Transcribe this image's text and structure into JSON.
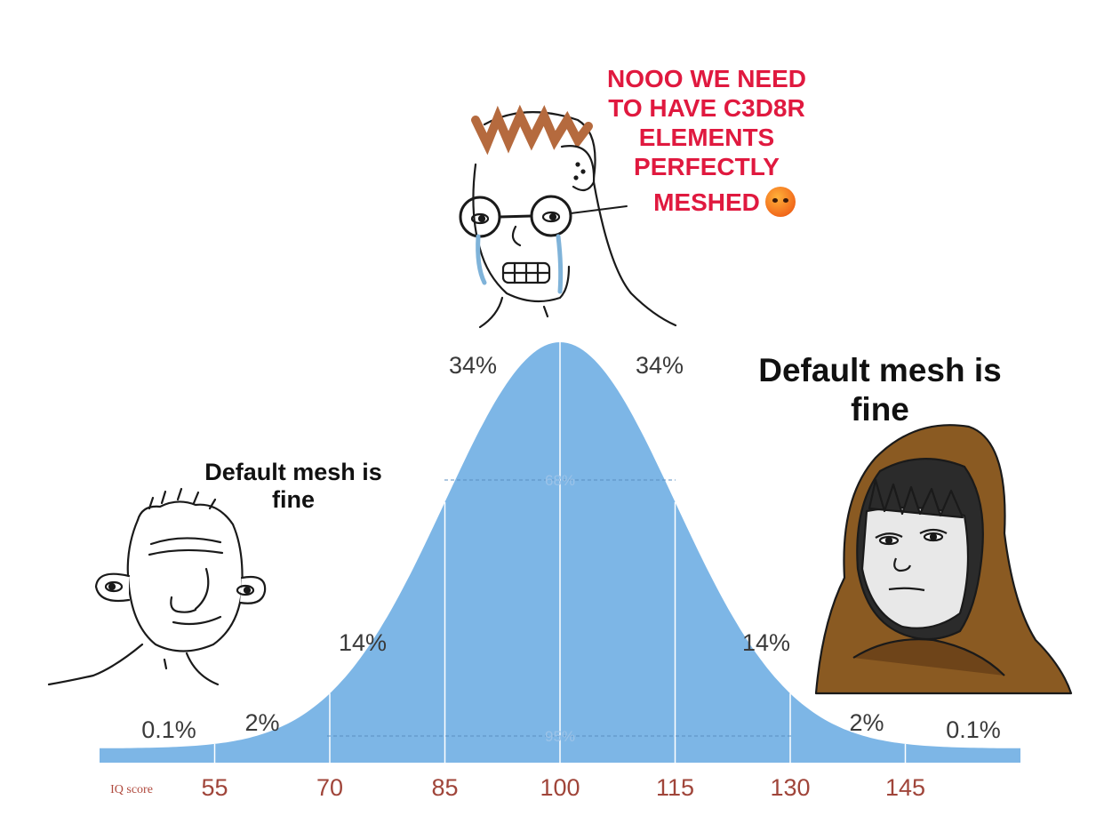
{
  "captions": {
    "top_line1": "NOOO WE NEED",
    "top_line2": "TO HAVE C3D8R",
    "top_line3": "ELEMENTS",
    "top_line4": "PERFECTLY",
    "top_line5": "MESHED",
    "left": "Default mesh is fine",
    "right": "Default mesh is fine"
  },
  "characters": {
    "top": "crying-nerd-wojak",
    "left": "simple-wojak",
    "right": "hooded-wojak"
  },
  "chart_data": {
    "type": "area",
    "xlabel": "IQ score",
    "x_ticks": [
      "55",
      "70",
      "85",
      "100",
      "115",
      "130",
      "145"
    ],
    "segment_labels": [
      "0.1%",
      "2%",
      "14%",
      "34%",
      "34%",
      "14%",
      "2%",
      "0.1%"
    ],
    "inner_labels": [
      "68%",
      "95%"
    ],
    "mean": 100,
    "sd": 15,
    "xlim": [
      40,
      160
    ],
    "colors": {
      "fill": "#7db6e6",
      "tick": "#a0453a",
      "caption_top": "#e0193f"
    }
  }
}
